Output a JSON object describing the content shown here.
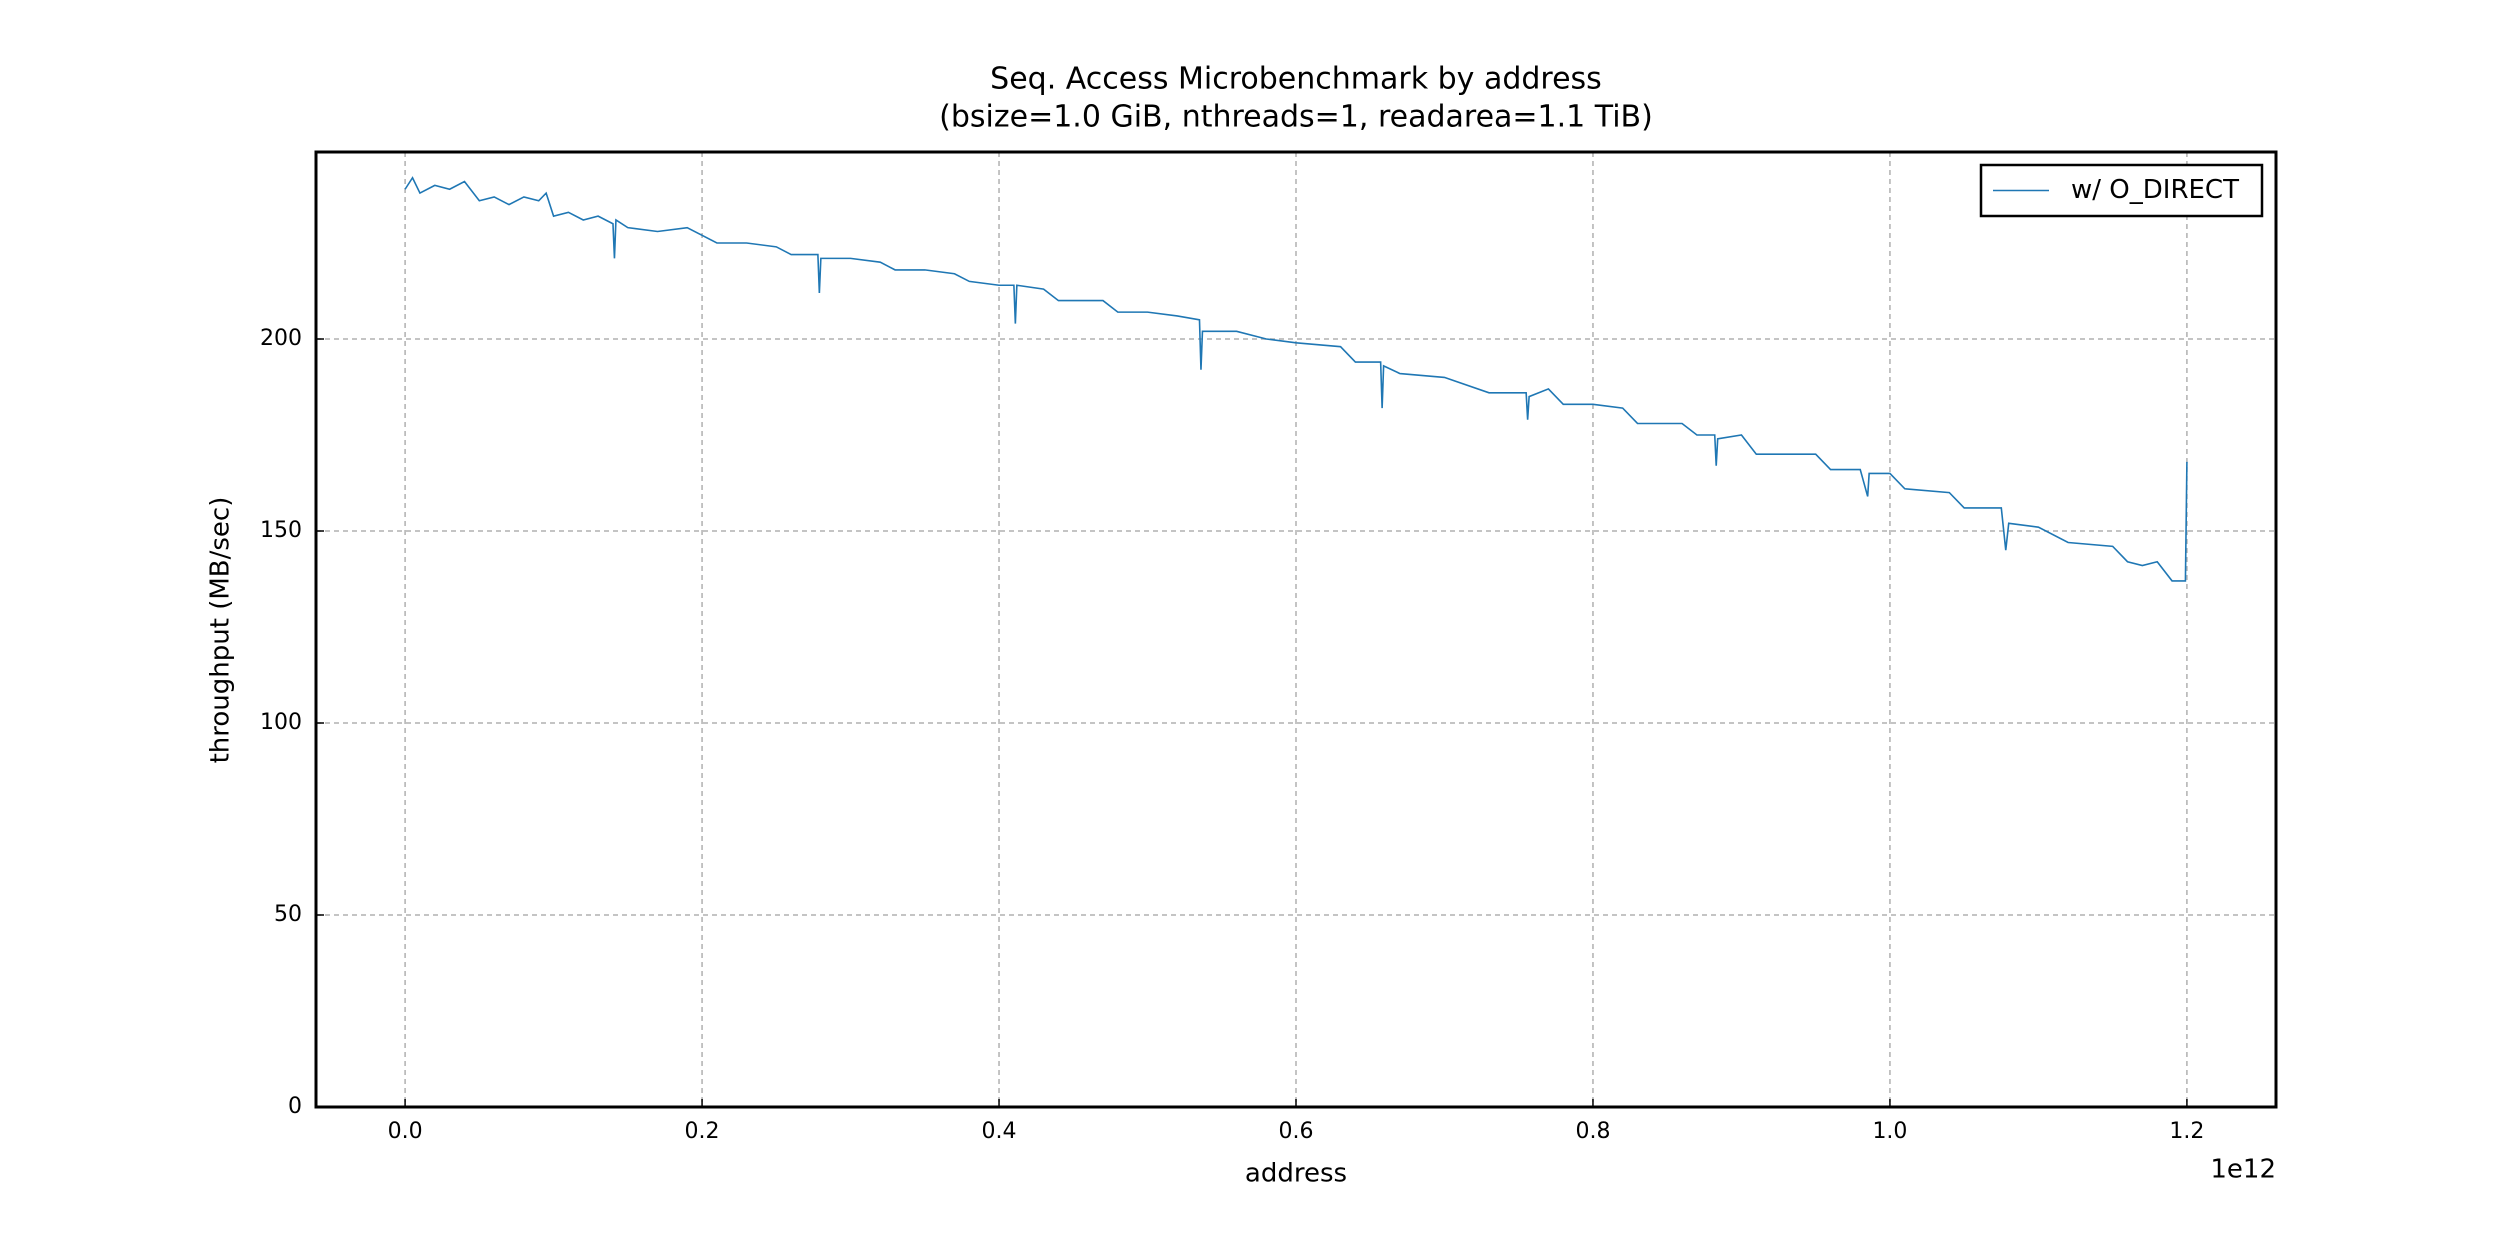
{
  "chart_data": {
    "type": "line",
    "title": "Seq. Access Microbenchmark by address",
    "subtitle": "(bsize=1.0 GiB, nthreads=1, readarea=1.1 TiB)",
    "x_label": "address",
    "y_label": "throughput (MB/sec)",
    "x_offset_label": "1e12",
    "xlim": [
      -0.06,
      1.26
    ],
    "ylim": [
      0,
      248.7
    ],
    "xticks": [
      {
        "value": 0,
        "label": "0.0"
      },
      0.2,
      0.4,
      0.6,
      0.8,
      {
        "value": 1,
        "label": "1.0"
      },
      1.2
    ],
    "yticks": [
      0,
      50,
      100,
      150,
      200
    ],
    "grid": true,
    "legend": "upper right",
    "x": [
      0,
      0.005,
      0.01,
      0.02,
      0.03,
      0.04,
      0.05,
      0.06,
      0.07,
      0.08,
      0.09,
      0.095,
      0.1,
      0.11,
      0.12,
      0.13,
      0.14,
      0.141,
      0.142,
      0.15,
      0.17,
      0.19,
      0.2,
      0.21,
      0.23,
      0.25,
      0.26,
      0.278,
      0.279,
      0.28,
      0.3,
      0.32,
      0.33,
      0.35,
      0.37,
      0.38,
      0.4,
      0.41,
      0.411,
      0.412,
      0.43,
      0.44,
      0.47,
      0.48,
      0.5,
      0.52,
      0.535,
      0.536,
      0.537,
      0.56,
      0.58,
      0.6,
      0.63,
      0.64,
      0.657,
      0.658,
      0.659,
      0.67,
      0.7,
      0.73,
      0.755,
      0.756,
      0.757,
      0.77,
      0.78,
      0.8,
      0.82,
      0.83,
      0.86,
      0.87,
      0.882,
      0.883,
      0.884,
      0.9,
      0.91,
      0.95,
      0.96,
      0.98,
      0.985,
      0.986,
      1.0,
      1.01,
      1.04,
      1.05,
      1.075,
      1.078,
      1.08,
      1.1,
      1.12,
      1.15,
      1.16,
      1.17,
      1.18,
      1.19,
      1.197,
      1.199,
      1.2
    ],
    "series": [
      {
        "name": "w/ O_DIRECT",
        "color": "#1f77b4",
        "values": [
          239,
          242,
          238,
          240,
          239,
          241,
          236,
          237,
          235,
          237,
          236,
          238,
          232,
          233,
          231,
          232,
          230,
          221,
          231,
          229,
          228,
          229,
          227,
          225,
          225,
          224,
          222,
          222,
          212,
          221,
          221,
          220,
          218,
          218,
          217,
          215,
          214,
          214,
          204,
          214,
          213,
          210,
          210,
          207,
          207,
          206,
          205,
          192,
          202,
          202,
          200,
          199,
          198,
          194,
          194,
          182,
          193,
          191,
          190,
          186,
          186,
          179,
          185,
          187,
          183,
          183,
          182,
          178,
          178,
          175,
          175,
          167,
          174,
          175,
          170,
          170,
          166,
          166,
          159,
          165,
          165,
          161,
          160,
          156,
          156,
          145,
          152,
          151,
          147,
          146,
          142,
          141,
          142,
          137,
          137,
          137,
          168
        ]
      }
    ]
  }
}
